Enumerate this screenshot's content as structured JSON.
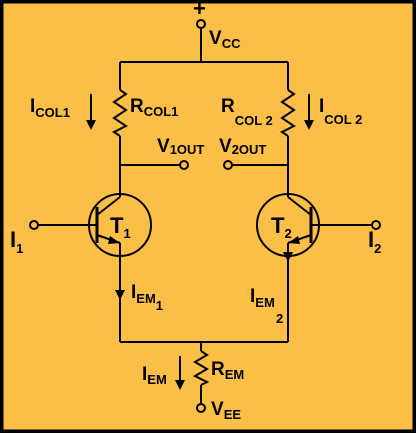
{
  "colors": {
    "background": "#fbbf47",
    "line": "#000000",
    "border": "#000000"
  },
  "labels": {
    "vcc_plus": "+",
    "vcc": {
      "main": "V",
      "sub": "CC"
    },
    "icol1": {
      "main": "I",
      "sub": "COL1"
    },
    "rcol1": {
      "main": "R",
      "sub": "COL1"
    },
    "rcol2": {
      "main": "R",
      "sub": "COL 2"
    },
    "icol2": {
      "main": "I",
      "sub": "COL 2"
    },
    "v1out": {
      "main": "V",
      "sub": "1OUT"
    },
    "v2out": {
      "main": "V",
      "sub": "2OUT"
    },
    "t1": {
      "main": "T",
      "sub": "1"
    },
    "t2": {
      "main": "T",
      "sub": "2"
    },
    "i1": {
      "main": "I",
      "sub": "1"
    },
    "i2": {
      "main": "I",
      "sub": "2"
    },
    "iem1": {
      "main": "I",
      "sub": "EM",
      "sub2": "1"
    },
    "iem2": {
      "main": "I",
      "sub": "EM",
      "sub2": "2"
    },
    "iem": {
      "main": "I",
      "sub": "EM"
    },
    "rem": {
      "main": "R",
      "sub": "EM"
    },
    "vee": {
      "main": "V",
      "sub": "EE"
    }
  }
}
